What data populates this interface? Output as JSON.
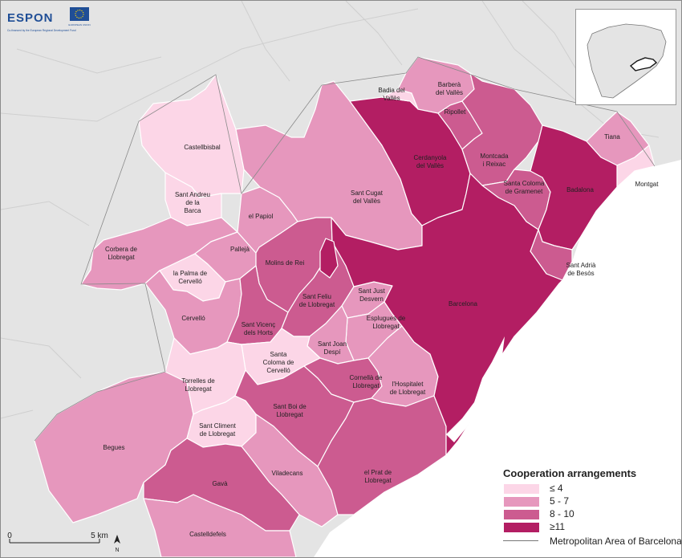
{
  "logo": {
    "brand": "ESPON",
    "tagline": "Co-financed by the European Regional Development Fund",
    "eu_caption": "EUROPEAN UNION"
  },
  "colors": {
    "class_1": "#fcd6e7",
    "class_2": "#e697bd",
    "class_3": "#cc5b90",
    "class_4": "#b31e63",
    "sea": "#ffffff",
    "land_outside": "#e4e4e4",
    "roads": "#cfcfcf"
  },
  "municipalities": [
    {
      "name": "Badia del Vallès",
      "class": 1
    },
    {
      "name": "Barberà del Vallès",
      "class": 2
    },
    {
      "name": "Ripollet",
      "class": 3
    },
    {
      "name": "Montcada i Reixac",
      "class": 3
    },
    {
      "name": "Cerdanyola del Vallès",
      "class": 4
    },
    {
      "name": "Tiana",
      "class": 2
    },
    {
      "name": "Montgat",
      "class": 1
    },
    {
      "name": "Badalona",
      "class": 4
    },
    {
      "name": "Santa Coloma de Gramenet",
      "class": 3
    },
    {
      "name": "Sant Adrià de Besòs",
      "class": 3
    },
    {
      "name": "Barcelona",
      "class": 4
    },
    {
      "name": "Castellbisbal",
      "class": 1
    },
    {
      "name": "Sant Andreu de la Barca",
      "class": 1
    },
    {
      "name": "Sant Cugat del Vallès",
      "class": 2
    },
    {
      "name": "el Papiol",
      "class": 2
    },
    {
      "name": "Corbera de Llobregat",
      "class": 2
    },
    {
      "name": "la Palma de Cervelló",
      "class": 1
    },
    {
      "name": "Pallejà",
      "class": 2
    },
    {
      "name": "Molins de Rei",
      "class": 3
    },
    {
      "name": "Sant Feliu de Llobregat",
      "class": 3
    },
    {
      "name": "Sant Just Desvern",
      "class": 2
    },
    {
      "name": "Cervelló",
      "class": 2
    },
    {
      "name": "Sant Vicenç dels Horts",
      "class": 3
    },
    {
      "name": "Esplugues de Llobregat",
      "class": 2
    },
    {
      "name": "Sant Joan Despí",
      "class": 3
    },
    {
      "name": "Santa Coloma de Cervelló",
      "class": 1
    },
    {
      "name": "Torrelles de Llobregat",
      "class": 1
    },
    {
      "name": "Cornellà de Llobregat",
      "class": 3
    },
    {
      "name": "l'Hospitalet de Llobregat",
      "class": 2
    },
    {
      "name": "Sant Boi de Llobregat",
      "class": 3
    },
    {
      "name": "Sant Climent de Llobregat",
      "class": 1
    },
    {
      "name": "Begues",
      "class": 2
    },
    {
      "name": "Viladecans",
      "class": 2
    },
    {
      "name": "el Prat de Llobregat",
      "class": 3
    },
    {
      "name": "Gavà",
      "class": 3
    },
    {
      "name": "Castelldefels",
      "class": 2
    }
  ],
  "labels": {
    "badia_1": "Badia del",
    "badia_2": "Vallès",
    "barbera_1": "Barberà",
    "barbera_2": "del Vallès",
    "ripollet": "Ripollet",
    "montcada_1": "Montcada",
    "montcada_2": "i Reixac",
    "cerdanyola_1": "Cerdanyola",
    "cerdanyola_2": "del Vallès",
    "tiana": "Tiana",
    "montgat": "Montgat",
    "badalona": "Badalona",
    "scg_1": "Santa Coloma",
    "scg_2": "de Gramenet",
    "adria_1": "Sant Adrià",
    "adria_2": "de Besòs",
    "barcelona": "Barcelona",
    "castellbisbal": "Castellbisbal",
    "sab_1": "Sant Andreu",
    "sab_2": "de la",
    "sab_3": "Barca",
    "santcugat_1": "Sant Cugat",
    "santcugat_2": "del Vallès",
    "papiol": "el Papiol",
    "corbera_1": "Corbera de",
    "corbera_2": "Llobregat",
    "lapalma_1": "la Palma de",
    "lapalma_2": "Cervelló",
    "palleja": "Pallejà",
    "molins": "Molins de Rei",
    "santfeliu_1": "Sant Feliu",
    "santfeliu_2": "de Llobregat",
    "santjust_1": "Sant Just",
    "santjust_2": "Desvern",
    "cervello": "Cervelló",
    "vicenc_1": "Sant Vicenç",
    "vicenc_2": "dels Horts",
    "esplugues_1": "Esplugues de",
    "esplugues_2": "Llobregat",
    "joan_1": "Sant Joan",
    "joan_2": "Despí",
    "scc_1": "Santa",
    "scc_2": "Coloma de",
    "scc_3": "Cervelló",
    "torrelles_1": "Torrelles de",
    "torrelles_2": "Llobregat",
    "cornella_1": "Cornellà de",
    "cornella_2": "Llobregat",
    "hosp_1": "l'Hospitalet",
    "hosp_2": "de Llobregat",
    "santboi_1": "Sant Boi de",
    "santboi_2": "Llobregat",
    "climent_1": "Sant Climent",
    "climent_2": "de Llobregat",
    "begues": "Begues",
    "viladecans": "Viladecans",
    "prat_1": "el Prat de",
    "prat_2": "Llobregat",
    "gava": "Gavà",
    "castelldefels": "Castelldefels"
  },
  "legend": {
    "title": "Cooperation arrangements",
    "classes": [
      {
        "label": "≤ 4",
        "color": "#fcd6e7"
      },
      {
        "label": "5 - 7",
        "color": "#e697bd"
      },
      {
        "label": "8 - 10",
        "color": "#cc5b90"
      },
      {
        "label": "≥11",
        "color": "#b31e63"
      }
    ],
    "boundary_label": "Metropolitan Area of Barcelona"
  },
  "scale_bar": {
    "start": "0",
    "end": "5 km",
    "north": "N"
  }
}
